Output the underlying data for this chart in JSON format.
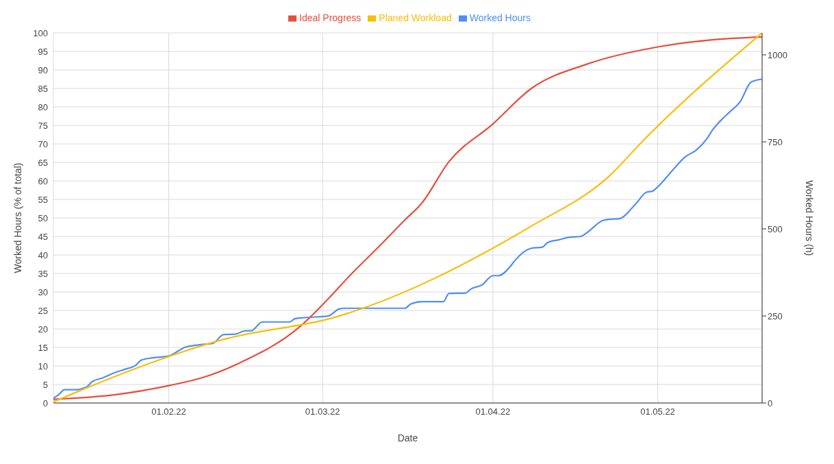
{
  "chart_data": {
    "type": "line",
    "xlabel": "Date",
    "ylabel": "Worked Hours (% of total)",
    "y2label": "Worked Hours (h)",
    "legend": "top",
    "grid": true,
    "marker": "none",
    "line_style": "solid",
    "xlim": [
      "2022-01-11",
      "2022-05-20"
    ],
    "xticks": [
      {
        "value": "2022-02-01",
        "label": "01.02.22"
      },
      {
        "value": "2022-03-01",
        "label": "01.03.22"
      },
      {
        "value": "2022-04-01",
        "label": "01.04.22"
      },
      {
        "value": "2022-05-01",
        "label": "01.05.22"
      }
    ],
    "ylim": [
      0,
      100
    ],
    "yticks": [
      0,
      5,
      10,
      15,
      20,
      25,
      30,
      35,
      40,
      45,
      50,
      55,
      60,
      65,
      70,
      75,
      80,
      85,
      90,
      95,
      100
    ],
    "y2lim": [
      0,
      1063
    ],
    "y2ticks": [
      0,
      250,
      500,
      750,
      1000
    ],
    "series": [
      {
        "name": "Worked Hours",
        "color": "#4e8ef7",
        "x": [
          "2022-01-11",
          "2022-01-12",
          "2022-01-13",
          "2022-01-15",
          "2022-01-17",
          "2022-01-18",
          "2022-01-20",
          "2022-01-22",
          "2022-01-24",
          "2022-01-26",
          "2022-01-27",
          "2022-01-29",
          "2022-02-01",
          "2022-02-03",
          "2022-02-04",
          "2022-02-07",
          "2022-02-09",
          "2022-02-11",
          "2022-02-13",
          "2022-02-15",
          "2022-02-16",
          "2022-02-18",
          "2022-02-23",
          "2022-02-24",
          "2022-02-26",
          "2022-03-02",
          "2022-03-04",
          "2022-03-05",
          "2022-03-16",
          "2022-03-17",
          "2022-03-19",
          "2022-03-23",
          "2022-03-24",
          "2022-03-27",
          "2022-03-28",
          "2022-03-30",
          "2022-04-01",
          "2022-04-02",
          "2022-04-04",
          "2022-04-05",
          "2022-04-08",
          "2022-04-10",
          "2022-04-11",
          "2022-04-13",
          "2022-04-15",
          "2022-04-17",
          "2022-04-18",
          "2022-04-21",
          "2022-04-22",
          "2022-04-24",
          "2022-04-27",
          "2022-04-29",
          "2022-04-30",
          "2022-05-01",
          "2022-05-04",
          "2022-05-06",
          "2022-05-08",
          "2022-05-10",
          "2022-05-11",
          "2022-05-13",
          "2022-05-14",
          "2022-05-16",
          "2022-05-18",
          "2022-05-20"
        ],
        "values": [
          1.3,
          2.3,
          3.6,
          3.6,
          4.3,
          5.7,
          6.8,
          8.1,
          9.1,
          10.2,
          11.6,
          12.2,
          12.7,
          14.3,
          15.1,
          15.8,
          16.1,
          18.5,
          18.6,
          19.5,
          19.5,
          21.9,
          21.9,
          22.8,
          23.1,
          23.5,
          25.4,
          25.6,
          25.6,
          26.7,
          27.4,
          27.4,
          29.6,
          29.7,
          30.8,
          31.9,
          34.4,
          34.4,
          36.6,
          38.5,
          41.8,
          42.1,
          43.4,
          44.1,
          44.8,
          45.0,
          45.9,
          49.3,
          49.6,
          49.8,
          53.8,
          57.0,
          57.2,
          58.4,
          63.4,
          66.5,
          68.3,
          71.5,
          73.8,
          77.1,
          78.5,
          81.4,
          86.7,
          87.5
        ]
      },
      {
        "name": "Ideal Progress",
        "color": "#ea4c3c",
        "x": [
          "2022-01-11",
          "2022-01-22",
          "2022-02-01",
          "2022-02-07",
          "2022-02-14",
          "2022-02-25",
          "2022-03-02",
          "2022-03-06",
          "2022-03-11",
          "2022-03-16",
          "2022-03-19",
          "2022-03-24",
          "2022-04-01",
          "2022-04-08",
          "2022-04-18",
          "2022-05-01",
          "2022-05-10",
          "2022-05-20"
        ],
        "values": [
          1.0,
          2.2,
          4.7,
          6.8,
          10.9,
          20.8,
          28.1,
          34.5,
          41.9,
          49.5,
          53.9,
          65.2,
          75.4,
          85.0,
          91.5,
          96.2,
          98.0,
          98.9
        ]
      },
      {
        "name": "Planed Workload",
        "color": "#fbbc04",
        "x": [
          "2022-01-11",
          "2022-01-14",
          "2022-02-11",
          "2022-03-04",
          "2022-04-08",
          "2022-04-22",
          "2022-04-29",
          "2022-05-20"
        ],
        "values": [
          0.3,
          2.2,
          17.2,
          23.5,
          47.8,
          61.1,
          71.9,
          100
        ]
      }
    ]
  }
}
